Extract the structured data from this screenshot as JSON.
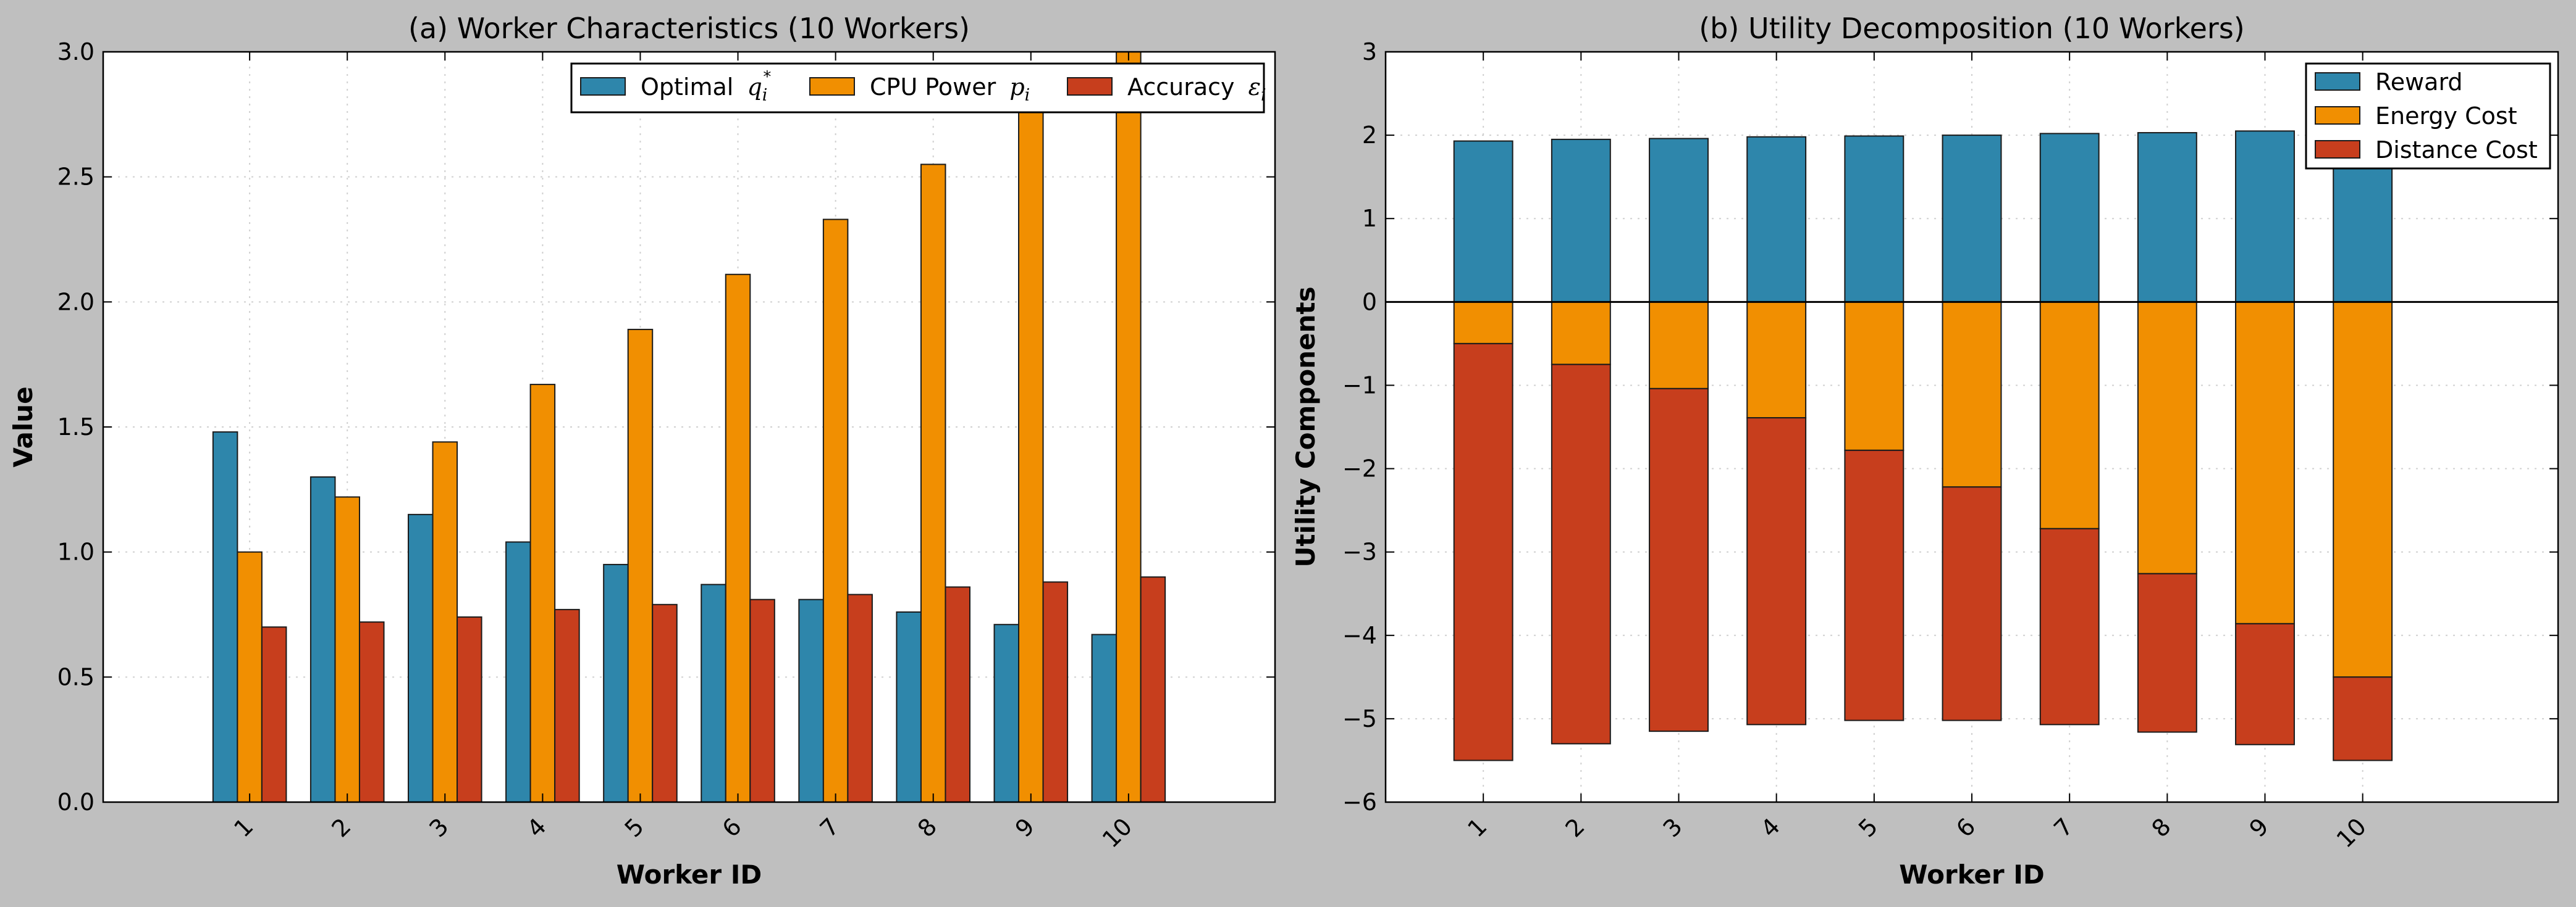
{
  "colors": {
    "figure_bg": "#bfbfbf",
    "axes_bg": "#ffffff",
    "blue": "#2e86ab",
    "orange": "#f18f01",
    "red": "#c73e1d",
    "grid": "#d0d0d0"
  },
  "chart_data": [
    {
      "type": "bar",
      "title": "(a) Worker Characteristics (10 Workers)",
      "xlabel": "Worker ID",
      "ylabel": "Value",
      "xlim": [
        -1.5,
        10.5
      ],
      "ylim": [
        0,
        3.0
      ],
      "yticks": [
        0.0,
        0.5,
        1.0,
        1.5,
        2.0,
        2.5,
        3.0
      ],
      "ytick_labels": [
        "0.0",
        "0.5",
        "1.0",
        "1.5",
        "2.0",
        "2.5",
        "3.0"
      ],
      "grid": true,
      "legend": {
        "placement": "top-right",
        "columns": 3
      },
      "categories": [
        "1",
        "2",
        "3",
        "4",
        "5",
        "6",
        "7",
        "8",
        "9",
        "10"
      ],
      "series": [
        {
          "name": "Optimal",
          "symbol": "q",
          "sub": "i",
          "sup": "*",
          "color": "#2e86ab",
          "values": [
            1.48,
            1.3,
            1.15,
            1.04,
            0.95,
            0.87,
            0.81,
            0.76,
            0.71,
            0.67
          ]
        },
        {
          "name": "CPU Power",
          "symbol": "p",
          "sub": "i",
          "sup": "",
          "color": "#f18f01",
          "values": [
            1.0,
            1.22,
            1.44,
            1.67,
            1.89,
            2.11,
            2.33,
            2.55,
            2.78,
            3.0
          ]
        },
        {
          "name": "Accuracy",
          "symbol": "ε",
          "sub": "i",
          "sup": "",
          "color": "#c73e1d",
          "values": [
            0.7,
            0.72,
            0.74,
            0.77,
            0.79,
            0.81,
            0.83,
            0.86,
            0.88,
            0.9
          ]
        }
      ]
    },
    {
      "type": "bar",
      "stacked": true,
      "title": "(b) Utility Decomposition (10 Workers)",
      "xlabel": "Worker ID",
      "ylabel": "Utility Components",
      "xlim": [
        -1,
        11
      ],
      "ylim": [
        -6,
        3
      ],
      "yticks": [
        -6,
        -5,
        -4,
        -3,
        -2,
        -1,
        0,
        1,
        2,
        3
      ],
      "ytick_labels": [
        "−6",
        "−5",
        "−4",
        "−3",
        "−2",
        "−1",
        "0",
        "1",
        "2",
        "3"
      ],
      "grid": true,
      "zero_line": true,
      "legend": {
        "placement": "top-right",
        "columns": 1
      },
      "categories": [
        "1",
        "2",
        "3",
        "4",
        "5",
        "6",
        "7",
        "8",
        "9",
        "10"
      ],
      "series": [
        {
          "name": "Reward",
          "color": "#2e86ab",
          "values": [
            1.93,
            1.95,
            1.96,
            1.98,
            1.99,
            2.0,
            2.02,
            2.03,
            2.05,
            2.06
          ]
        },
        {
          "name": "Energy Cost",
          "color": "#f18f01",
          "values": [
            -0.5,
            -0.75,
            -1.04,
            -1.39,
            -1.78,
            -2.22,
            -2.72,
            -3.26,
            -3.86,
            -4.5
          ]
        },
        {
          "name": "Distance Cost",
          "color": "#c73e1d",
          "values": [
            -5.0,
            -4.55,
            -4.11,
            -3.68,
            -3.24,
            -2.8,
            -2.35,
            -1.9,
            -1.45,
            -1.0
          ]
        }
      ]
    }
  ]
}
